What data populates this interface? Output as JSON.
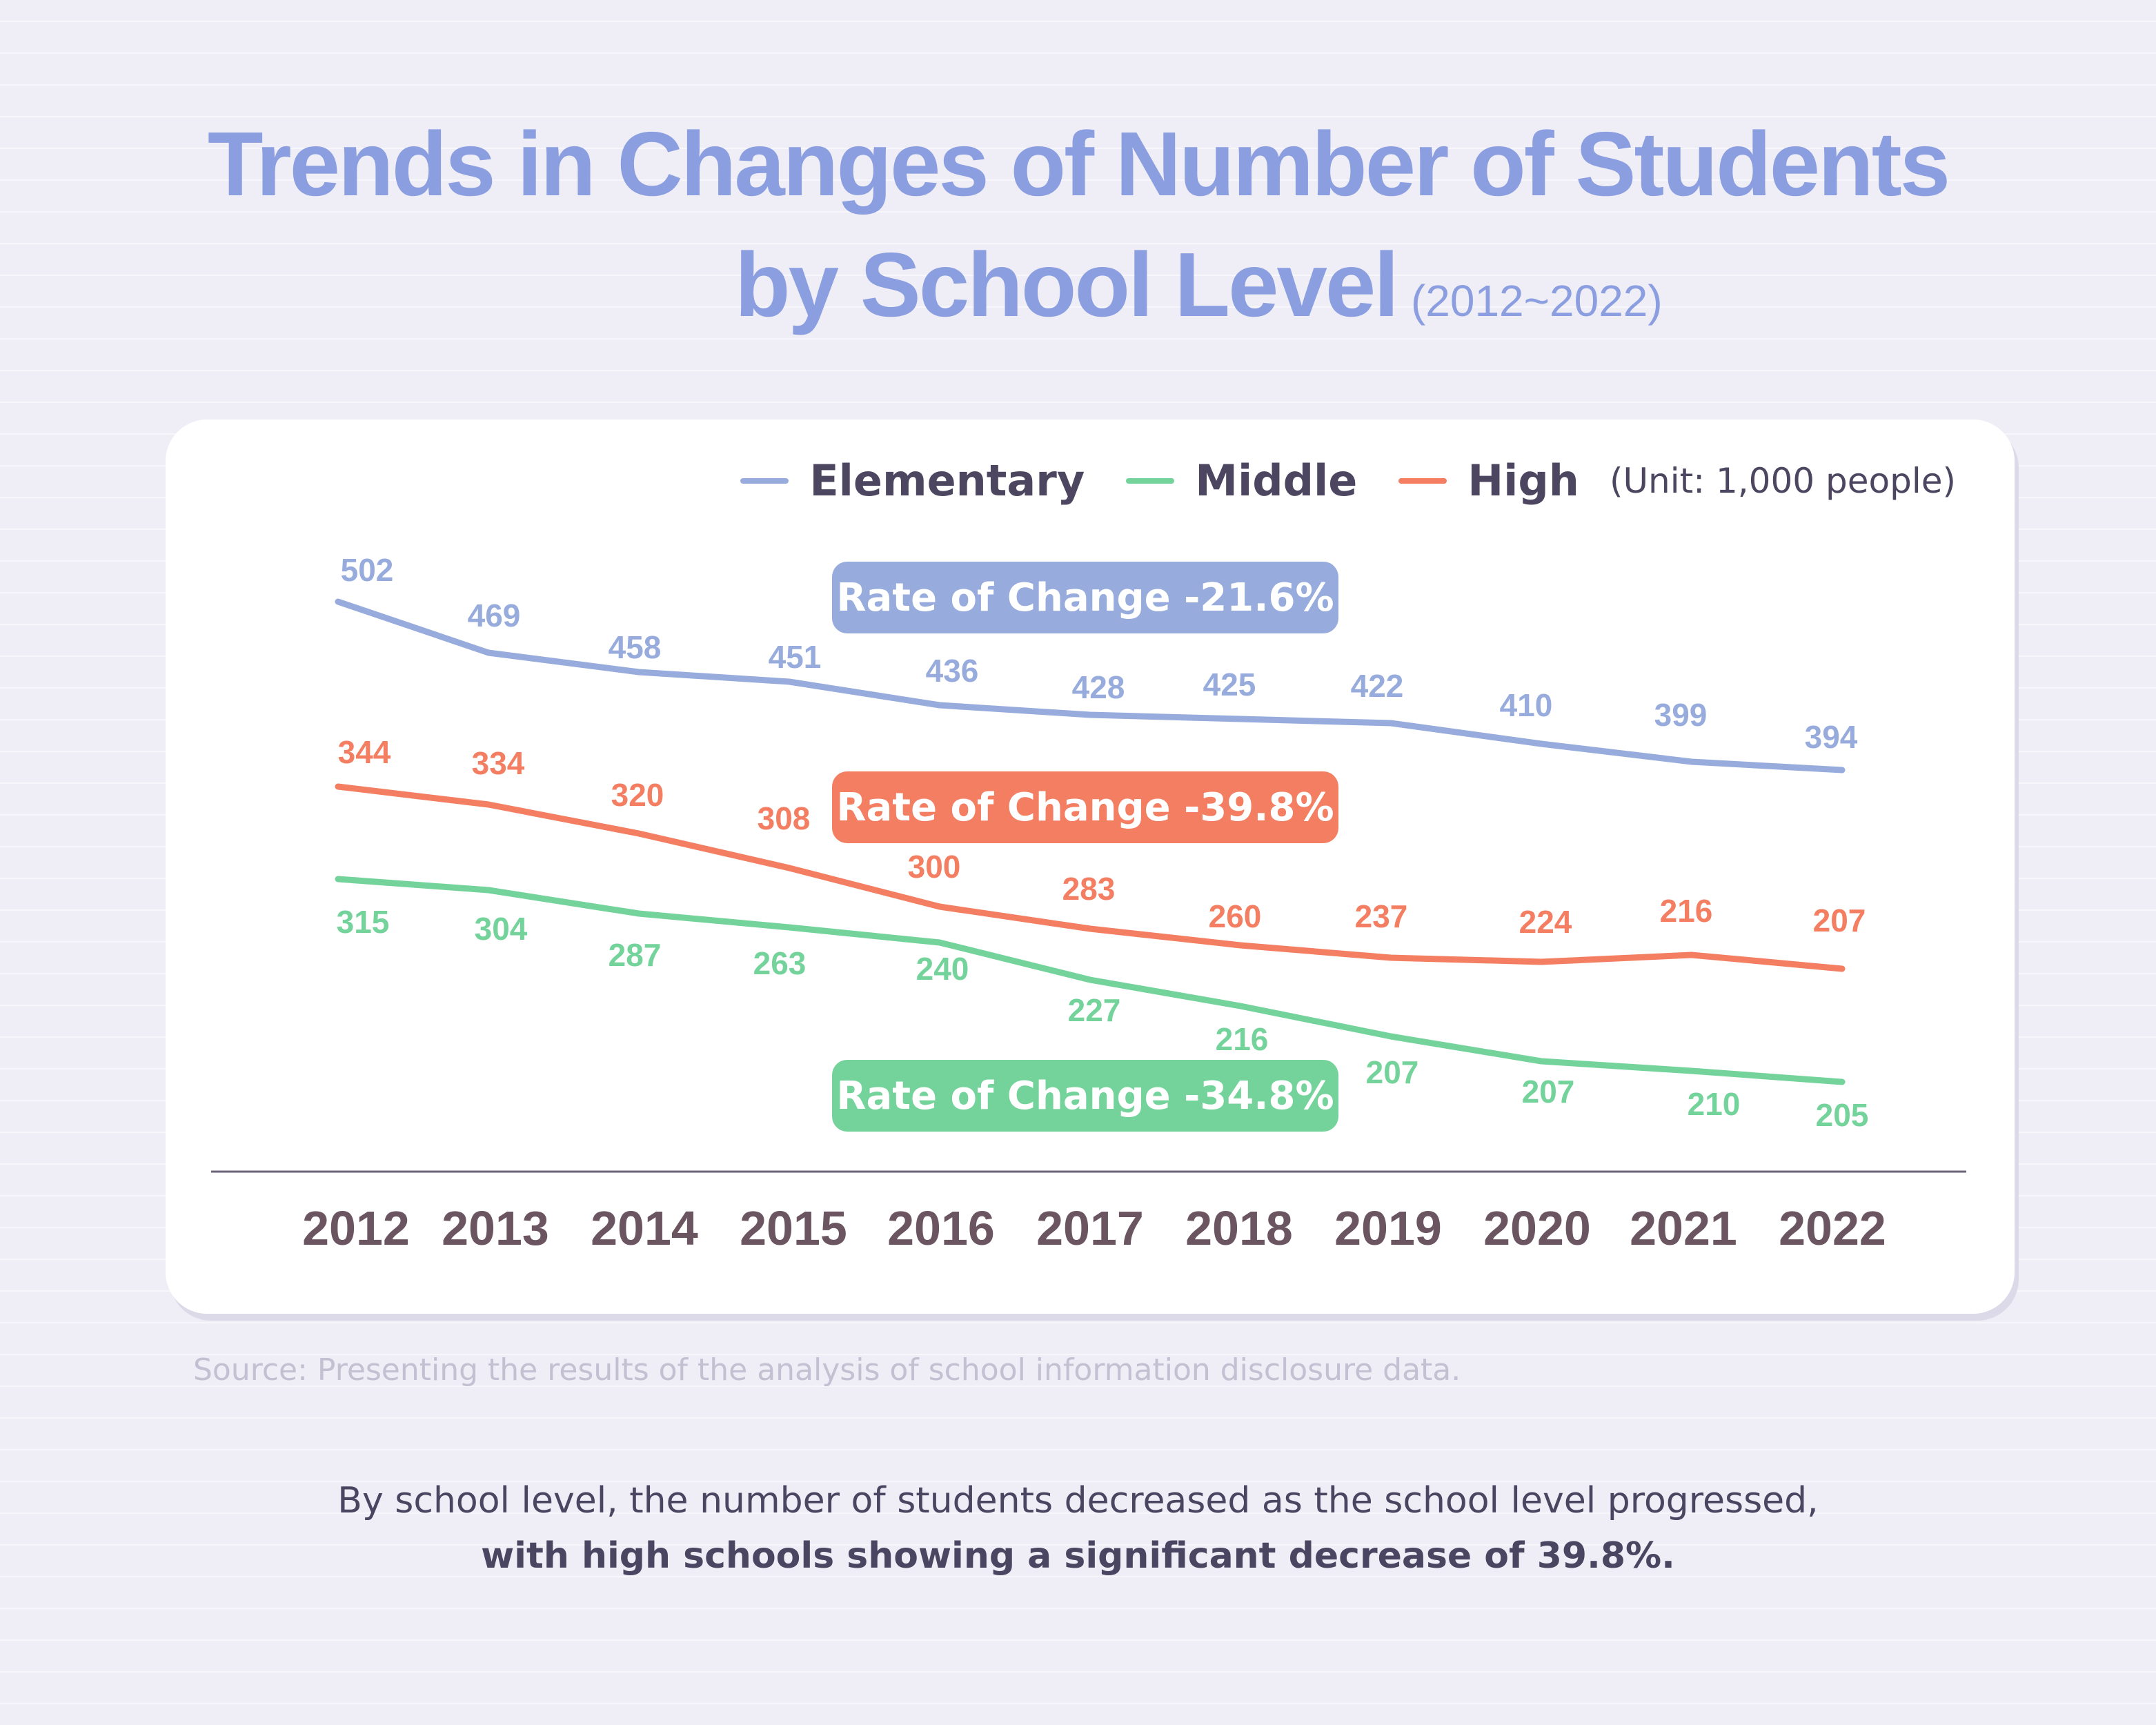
{
  "title": {
    "line1": "Trends in Changes of Number of Students",
    "line2": "by School Level",
    "period": "(2012~2022)"
  },
  "legend": {
    "unit": "(Unit: 1,000 people)"
  },
  "rate_boxes": [
    {
      "label": "Rate of Change  -21.6%",
      "color": "#97acdc"
    },
    {
      "label": "Rate of Change  -39.8%",
      "color": "#f47e62"
    },
    {
      "label": "Rate of Change  -34.8%",
      "color": "#74d39b"
    }
  ],
  "chart_data": {
    "type": "line",
    "categories": [
      "2012",
      "2013",
      "2014",
      "2015",
      "2016",
      "2017",
      "2018",
      "2019",
      "2020",
      "2021",
      "2022"
    ],
    "series": [
      {
        "name": "Elementary",
        "color": "#97acdc",
        "values": [
          502,
          469,
          458,
          451,
          436,
          428,
          425,
          422,
          410,
          399,
          394
        ]
      },
      {
        "name": "Middle",
        "color": "#74d39b",
        "values": [
          315,
          304,
          287,
          263,
          240,
          227,
          216,
          207,
          207,
          210,
          205
        ]
      },
      {
        "name": "High",
        "color": "#f47e62",
        "values": [
          344,
          334,
          320,
          308,
          300,
          283,
          260,
          237,
          224,
          216,
          207
        ]
      }
    ],
    "unit": "(Unit: 1,000 people)",
    "grid": false,
    "legend_position": "top-right"
  },
  "source": "Source: Presenting the results of the analysis of school information disclosure data.",
  "note": {
    "line1": "By school level, the number of students decreased as the school level progressed,",
    "line2": "with high schools showing a significant decrease of 39.8%."
  }
}
